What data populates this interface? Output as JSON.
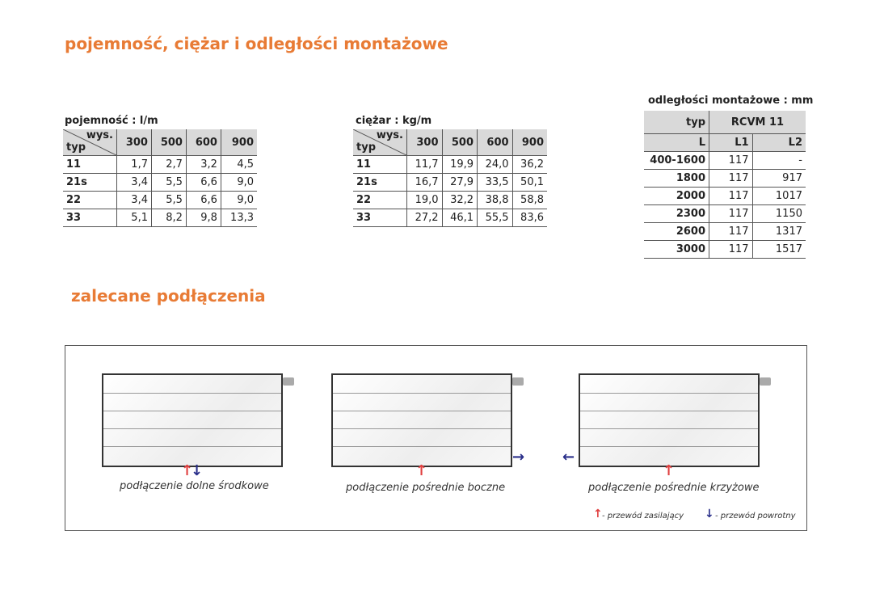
{
  "title1": "pojemność, ciężar i odległości montażowe",
  "title2": "zalecane podłączenia",
  "capacity": {
    "caption": "pojemność : l/m",
    "wys": "wys.",
    "typ": "typ",
    "heights": [
      "300",
      "500",
      "600",
      "900"
    ],
    "rows": [
      [
        "11",
        "1,7",
        "2,7",
        "3,2",
        "4,5"
      ],
      [
        "21s",
        "3,4",
        "5,5",
        "6,6",
        "9,0"
      ],
      [
        "22",
        "3,4",
        "5,5",
        "6,6",
        "9,0"
      ],
      [
        "33",
        "5,1",
        "8,2",
        "9,8",
        "13,3"
      ]
    ]
  },
  "weight": {
    "caption": "ciężar : kg/m",
    "wys": "wys.",
    "typ": "typ",
    "heights": [
      "300",
      "500",
      "600",
      "900"
    ],
    "rows": [
      [
        "11",
        "11,7",
        "19,9",
        "24,0",
        "36,2"
      ],
      [
        "21s",
        "16,7",
        "27,9",
        "33,5",
        "50,1"
      ],
      [
        "22",
        "19,0",
        "32,2",
        "38,8",
        "58,8"
      ],
      [
        "33",
        "27,2",
        "46,1",
        "55,5",
        "83,6"
      ]
    ]
  },
  "mounting": {
    "caption": "odległości montażowe : mm",
    "typ": "typ",
    "model": "RCVM 11",
    "cols": [
      "L",
      "L1",
      "L2"
    ],
    "rows": [
      [
        "400-1600",
        "117",
        "-"
      ],
      [
        "1800",
        "117",
        "917"
      ],
      [
        "2000",
        "117",
        "1017"
      ],
      [
        "2300",
        "117",
        "1150"
      ],
      [
        "2600",
        "117",
        "1317"
      ],
      [
        "3000",
        "117",
        "1517"
      ]
    ]
  },
  "connections": [
    "podłączenie dolne środkowe",
    "podłączenie pośrednie boczne",
    "podłączenie pośrednie krzyżowe"
  ],
  "legend": {
    "supply": "- przewód zasilający",
    "return": "- przewód powrotny"
  },
  "colors": {
    "accent": "#e87b35",
    "supply": "#e04040",
    "return": "#2a2f8a"
  }
}
